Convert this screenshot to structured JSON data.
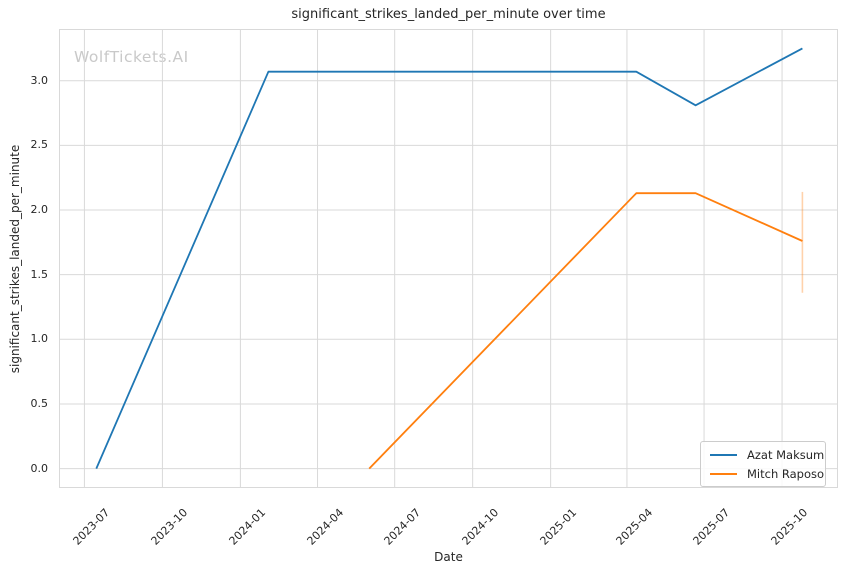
{
  "watermark": "WolfTickets.AI",
  "colors": {
    "background": "#ffffff",
    "grid": "#d9d9d9",
    "plot_border": "#d9d9d9",
    "text": "#262626",
    "watermark": "#c9c9c9",
    "series_blue": "#1f77b4",
    "series_orange": "#ff7f0e"
  },
  "chart_data": {
    "type": "line",
    "title": "significant_strikes_landed_per_minute over time",
    "xlabel": "Date",
    "ylabel": "significant_strikes_landed_per_minute",
    "grid": true,
    "legend_position": "lower right",
    "x_tick_labels": [
      "2023-07",
      "2023-10",
      "2024-01",
      "2024-04",
      "2024-07",
      "2024-10",
      "2025-01",
      "2025-04",
      "2025-07",
      "2025-10"
    ],
    "y_ticks": [
      0.0,
      0.5,
      1.0,
      1.5,
      2.0,
      2.5,
      3.0
    ],
    "xlim": [
      "2023-06-01",
      "2025-12-06"
    ],
    "ylim": [
      -0.15,
      3.4
    ],
    "series": [
      {
        "name": "Azat Maksum",
        "color": "#1f77b4",
        "points": [
          {
            "date": "2023-07-15",
            "value": 0.0
          },
          {
            "date": "2024-02-03",
            "value": 3.07
          },
          {
            "date": "2025-04-12",
            "value": 3.07
          },
          {
            "date": "2025-06-21",
            "value": 2.81
          },
          {
            "date": "2025-10-25",
            "value": 3.25
          }
        ]
      },
      {
        "name": "Mitch Raposo",
        "color": "#ff7f0e",
        "points": [
          {
            "date": "2024-06-01",
            "value": 0.0
          },
          {
            "date": "2025-04-12",
            "value": 2.13
          },
          {
            "date": "2025-06-21",
            "value": 2.13
          },
          {
            "date": "2025-10-25",
            "value": 1.76
          }
        ],
        "error_bar": {
          "date": "2025-10-25",
          "low": 1.36,
          "high": 2.14
        }
      }
    ]
  }
}
